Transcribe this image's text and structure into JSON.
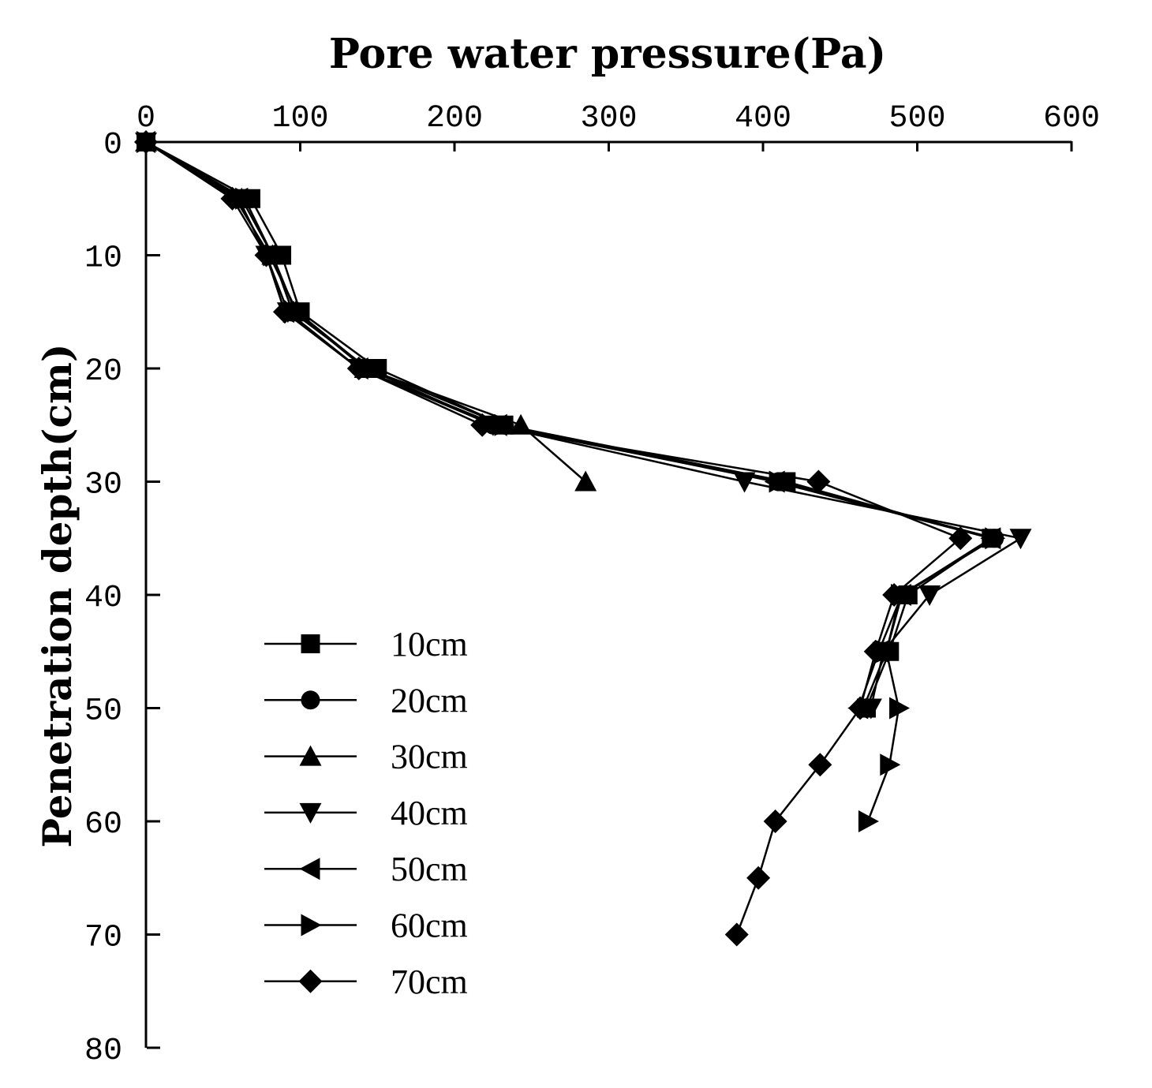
{
  "chart_data": {
    "type": "line",
    "title": "Pore water pressure(Pa)",
    "xlabel": "Pore water pressure(Pa)",
    "ylabel": "Penetration depth(cm)",
    "xlim": [
      0,
      600
    ],
    "ylim": [
      0,
      80
    ],
    "x_axis_position": "top",
    "y_axis_inverted": true,
    "xticks": [
      0,
      100,
      200,
      300,
      400,
      500,
      600
    ],
    "yticks": [
      0,
      10,
      20,
      30,
      40,
      50,
      60,
      70,
      80
    ],
    "grid": false,
    "legend_position": "lower-left",
    "series": [
      {
        "name": "10cm",
        "marker": "square",
        "points": [
          [
            0,
            0
          ],
          [
            68,
            5
          ],
          [
            88,
            10
          ],
          [
            100,
            15
          ],
          [
            150,
            20
          ],
          [
            232,
            25
          ],
          [
            415,
            30
          ],
          [
            548,
            35
          ],
          [
            494,
            40
          ],
          [
            482,
            45
          ],
          [
            467,
            50
          ]
        ]
      },
      {
        "name": "20cm",
        "marker": "circle",
        "points": [
          [
            0,
            0
          ],
          [
            58,
            5
          ],
          [
            80,
            10
          ],
          [
            98,
            15
          ],
          [
            143,
            20
          ],
          [
            225,
            25
          ],
          [
            410,
            30
          ],
          [
            550,
            35
          ],
          [
            490,
            40
          ],
          [
            480,
            45
          ],
          [
            465,
            50
          ]
        ]
      },
      {
        "name": "30cm",
        "marker": "triangle-up",
        "points": [
          [
            0,
            0
          ],
          [
            62,
            5
          ],
          [
            82,
            10
          ],
          [
            97,
            15
          ],
          [
            142,
            20
          ],
          [
            243,
            25
          ],
          [
            285,
            30
          ]
        ]
      },
      {
        "name": "40cm",
        "marker": "triangle-down",
        "points": [
          [
            0,
            0
          ],
          [
            60,
            5
          ],
          [
            78,
            10
          ],
          [
            92,
            15
          ],
          [
            138,
            20
          ],
          [
            225,
            25
          ],
          [
            388,
            30
          ],
          [
            567,
            35
          ],
          [
            508,
            40
          ],
          [
            478,
            45
          ],
          [
            470,
            50
          ]
        ]
      },
      {
        "name": "50cm",
        "marker": "triangle-left",
        "points": [
          [
            0,
            0
          ],
          [
            60,
            5
          ],
          [
            78,
            10
          ],
          [
            90,
            15
          ],
          [
            138,
            20
          ],
          [
            228,
            25
          ],
          [
            408,
            30
          ],
          [
            548,
            35
          ],
          [
            490,
            40
          ],
          [
            475,
            45
          ],
          [
            462,
            50
          ]
        ]
      },
      {
        "name": "60cm",
        "marker": "triangle-right",
        "points": [
          [
            0,
            0
          ],
          [
            64,
            5
          ],
          [
            82,
            10
          ],
          [
            95,
            15
          ],
          [
            144,
            20
          ],
          [
            232,
            25
          ],
          [
            410,
            30
          ],
          [
            550,
            35
          ],
          [
            489,
            40
          ],
          [
            480,
            45
          ],
          [
            488,
            50
          ],
          [
            482,
            55
          ],
          [
            468,
            60
          ]
        ]
      },
      {
        "name": "70cm",
        "marker": "diamond",
        "points": [
          [
            0,
            0
          ],
          [
            56,
            5
          ],
          [
            78,
            10
          ],
          [
            90,
            15
          ],
          [
            138,
            20
          ],
          [
            218,
            25
          ],
          [
            436,
            30
          ],
          [
            528,
            35
          ],
          [
            485,
            40
          ],
          [
            473,
            45
          ],
          [
            463,
            50
          ],
          [
            437,
            55
          ],
          [
            408,
            60
          ],
          [
            397,
            65
          ],
          [
            383,
            70
          ]
        ]
      }
    ]
  }
}
